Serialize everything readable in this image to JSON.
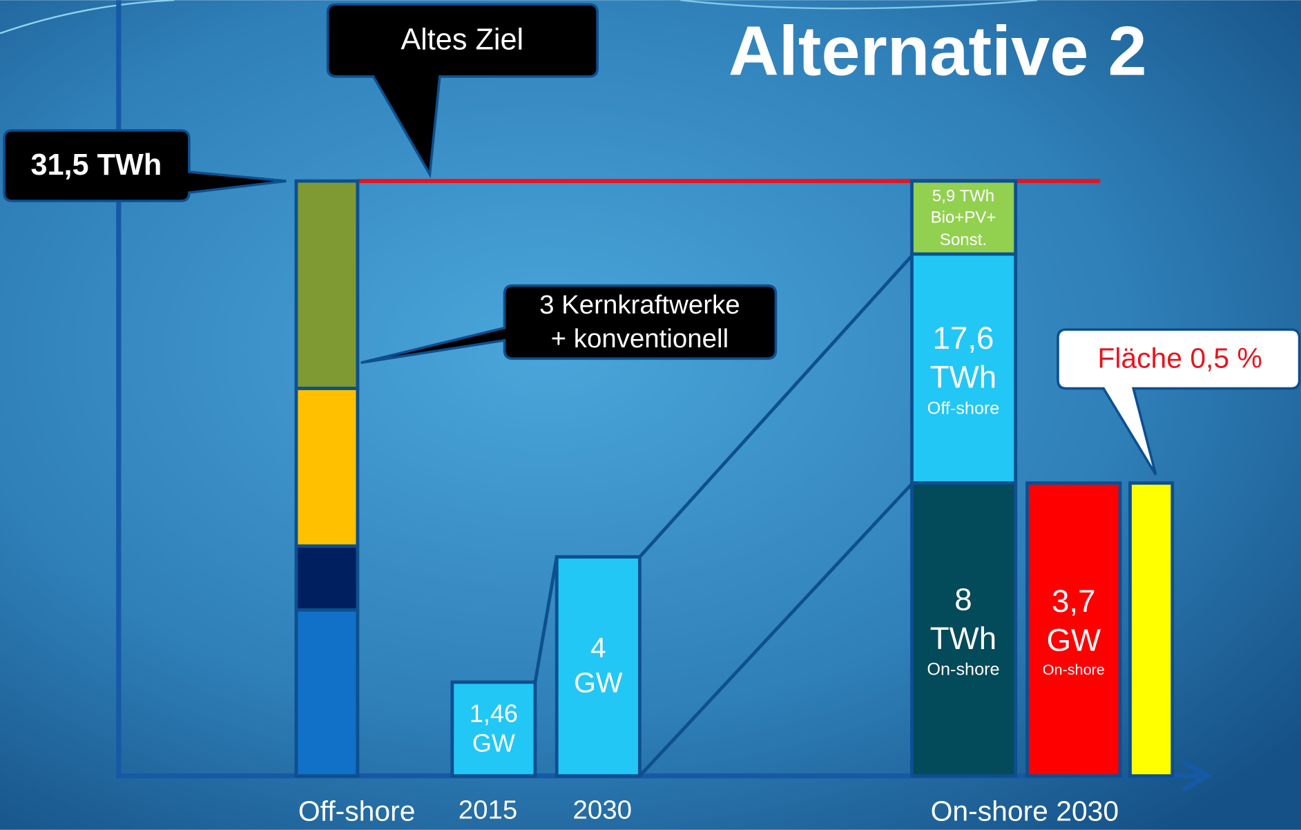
{
  "title": "Alternative 2",
  "callouts": {
    "old_target": "Altes Ziel",
    "target_value": "31,5 TWh",
    "nuclear": [
      "3 Kernkraftwerke",
      "+ konventionell"
    ],
    "area": "Fläche 0,5 %"
  },
  "bars": {
    "offshore_2015": [
      "1,46",
      "GW"
    ],
    "offshore_2030": [
      "4",
      "GW"
    ],
    "other": [
      "5,9 TWh",
      "Bio+PV+",
      "Sonst."
    ],
    "offshore_energy": [
      "17,6",
      "TWh",
      "Off-shore"
    ],
    "onshore_energy": [
      "8",
      "TWh",
      "On-shore"
    ],
    "onshore_power": [
      "3,7",
      "GW",
      "On-shore"
    ]
  },
  "x_labels": [
    "Off-shore",
    "2015",
    "2030",
    "On-shore 2030"
  ]
}
